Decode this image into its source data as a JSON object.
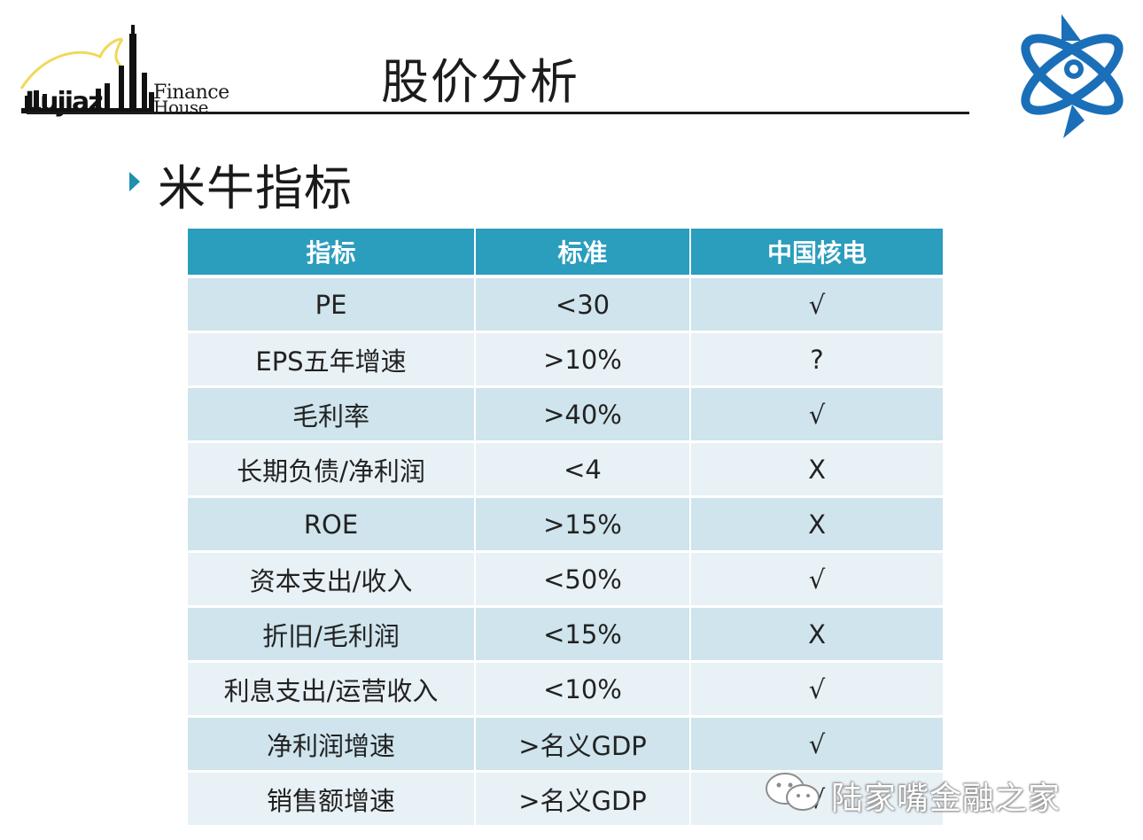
{
  "header": {
    "logo_left_text_lujiaz": "Lujiaz",
    "logo_left_text_finance": "Finance",
    "logo_left_text_house": "House",
    "title": "股价分析",
    "logo_right_icon": "atom-logo-icon"
  },
  "section": {
    "marker_icon": "triangle-bullet-icon",
    "title": "米牛指标"
  },
  "colors": {
    "header_fill": "#2b9dbd",
    "row_dark": "#cfe4ec",
    "row_light": "#e8f1f5",
    "logo_blue": "#1a6fb8",
    "accent_yellow": "#f0d95a"
  },
  "table": {
    "headers": [
      "指标",
      "标准",
      "中国核电"
    ],
    "rows": [
      [
        "PE",
        "<30",
        "√"
      ],
      [
        "EPS五年增速",
        ">10%",
        "?"
      ],
      [
        "毛利率",
        ">40%",
        "√"
      ],
      [
        "长期负债/净利润",
        "<4",
        "X"
      ],
      [
        "ROE",
        ">15%",
        "X"
      ],
      [
        "资本支出/收入",
        "<50%",
        "√"
      ],
      [
        "折旧/毛利润",
        "<15%",
        "X"
      ],
      [
        "利息支出/运营收入",
        "<10%",
        "√"
      ],
      [
        "净利润增速",
        ">名义GDP",
        "√"
      ],
      [
        "销售额增速",
        ">名义GDP",
        "√"
      ]
    ]
  },
  "watermark": {
    "icon": "wechat-icon",
    "text": "陆家嘴金融之家"
  }
}
